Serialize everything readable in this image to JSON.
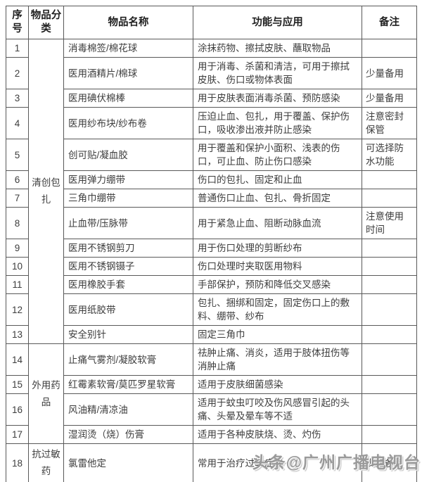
{
  "table": {
    "columns": [
      "序号",
      "物品分类",
      "物品名称",
      "功能与应用",
      "备注"
    ],
    "categories": [
      {
        "label": "清创包扎",
        "rows": 13
      },
      {
        "label": "外用药品",
        "rows": 4
      },
      {
        "label": "抗过敏药",
        "rows": 1
      }
    ],
    "rows": [
      {
        "no": "1",
        "name": "消毒棉签/棉花球",
        "func": "涂抹药物、擦拭皮肤、蘸取物品",
        "note": ""
      },
      {
        "no": "2",
        "name": "医用酒精片/棉球",
        "func": "用于消毒、杀菌和清洁，可用于擦拭皮肤、伤口或物体表面",
        "note": "少量备用"
      },
      {
        "no": "3",
        "name": "医用碘伏棉棒",
        "func": "用于皮肤表面消毒杀菌、预防感染",
        "note": "少量备用"
      },
      {
        "no": "4",
        "name": "医用纱布块/纱布卷",
        "func": "压迫止血、包扎，用于覆盖、保护伤口，吸收渗出液并防止感染",
        "note": "注意密封保管"
      },
      {
        "no": "5",
        "name": "创可贴/凝血胶",
        "func": "用于覆盖和保护小面积、浅表的伤口，可止血、防止伤口感染",
        "note": "可选择防水功能"
      },
      {
        "no": "6",
        "name": "医用弹力绷带",
        "func": "伤口的包扎、固定和止血",
        "note": ""
      },
      {
        "no": "7",
        "name": "三角巾绷带",
        "func": "普通伤口止血、包扎、骨折固定",
        "note": ""
      },
      {
        "no": "8",
        "name": "止血带/压脉带",
        "func": "用于紧急止血、阻断动脉血流",
        "note": "注意使用时间"
      },
      {
        "no": "9",
        "name": "医用不锈钢剪刀",
        "func": "用于伤口处理的剪断纱布",
        "note": ""
      },
      {
        "no": "10",
        "name": "医用不锈钢镊子",
        "func": "伤口处理时夹取医用物料",
        "note": ""
      },
      {
        "no": "11",
        "name": "医用橡胶手套",
        "func": "手部保护，预防和降低交叉感染",
        "note": ""
      },
      {
        "no": "12",
        "name": "医用纸胶带",
        "func": "包扎、捆绑和固定，固定伤口上的敷料、绷带、纱布",
        "note": ""
      },
      {
        "no": "13",
        "name": "安全别针",
        "func": "固定三角巾",
        "note": ""
      },
      {
        "no": "14",
        "name": "止痛气雾剂/凝胶软膏",
        "func": "祛肿止痛、消炎，适用于肢体扭伤等消肿止痛",
        "note": ""
      },
      {
        "no": "15",
        "name": "红霉素软膏/莫匹罗星软膏",
        "func": "适用于皮肤细菌感染",
        "note": ""
      },
      {
        "no": "16",
        "name": "风油精/清凉油",
        "func": "适用于蚊虫叮咬及伤风感冒引起的头痛、头晕及晕车等不适",
        "note": ""
      },
      {
        "no": "17",
        "name": "湿润烫（烧）伤膏",
        "func": "适用于各种皮肤烧、烫、灼伤",
        "note": ""
      },
      {
        "no": "18",
        "name": "氯雷他定",
        "func": "常用于治疗过敏症状",
        "note": "少量备用"
      }
    ]
  },
  "watermark": {
    "text": "头条@广州广播电视台"
  },
  "colors": {
    "border": "#595959",
    "text": "#3d3d3d",
    "header_text": "#1f1f1f",
    "watermark": "#9a9a9a",
    "background": "#ffffff"
  }
}
